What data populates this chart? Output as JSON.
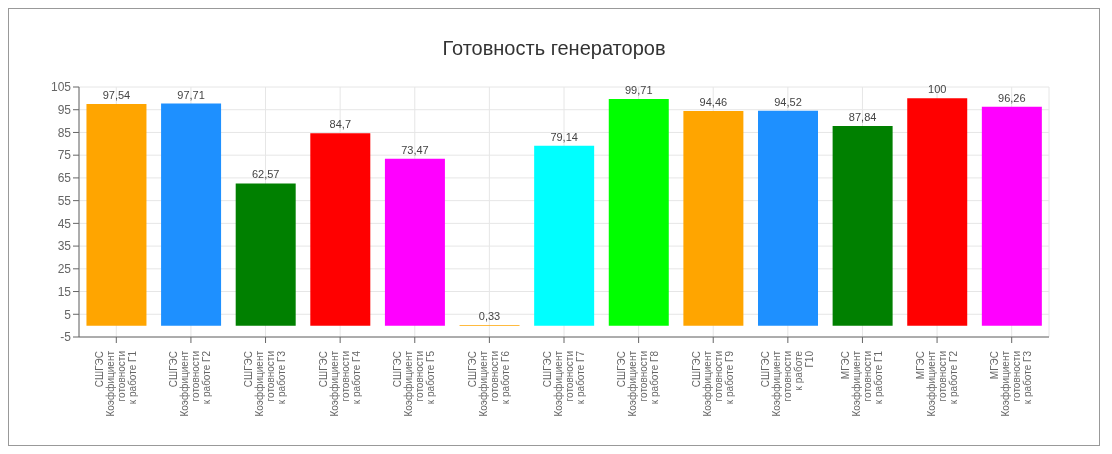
{
  "chart_data": {
    "type": "bar",
    "title": "Готовность генераторов",
    "categories": [
      "СШГЭС Коэффициент готовности к работе Г1",
      "СШГЭС Коэффициент готовности к работе Г2",
      "СШГЭС Коэффициент готовности к работе Г3",
      "СШГЭС Коэффициент готовности к работе Г4",
      "СШГЭС Коэффициент готовности к работе Г5",
      "СШГЭС Коэффициент готовности к работе Г6",
      "СШГЭС Коэффициент готовности к работе Г7",
      "СШГЭС Коэффициент готовности к работе Г8",
      "СШГЭС Коэффициент готовности к работе Г9",
      "СШГЭС Коэффициент готовности к работе Г10",
      "МГЭС Коэффициент готовности к работе Г1",
      "МГЭС Коэффициент готовности к работе Г2",
      "МГЭС Коэффициент готовности к работе Г3"
    ],
    "values": [
      97.54,
      97.71,
      62.57,
      84.7,
      73.47,
      0.33,
      79.14,
      99.71,
      94.46,
      94.52,
      87.84,
      100,
      96.26
    ],
    "value_labels": [
      "97,54",
      "97,71",
      "62,57",
      "84,7",
      "73,47",
      "0,33",
      "79,14",
      "99,71",
      "94,46",
      "94,52",
      "87,84",
      "100",
      "96,26"
    ],
    "colors": [
      "#ffa500",
      "#1e90ff",
      "#008000",
      "#ff0000",
      "#ff00ff",
      "#ffa500",
      "#00ffff",
      "#00ff00",
      "#ffa500",
      "#1e90ff",
      "#008000",
      "#ff0000",
      "#ff00ff"
    ],
    "ylim": [
      -5,
      105
    ],
    "yticks": [
      -5,
      5,
      15,
      25,
      35,
      45,
      55,
      65,
      75,
      85,
      95,
      105
    ],
    "grid": true
  }
}
